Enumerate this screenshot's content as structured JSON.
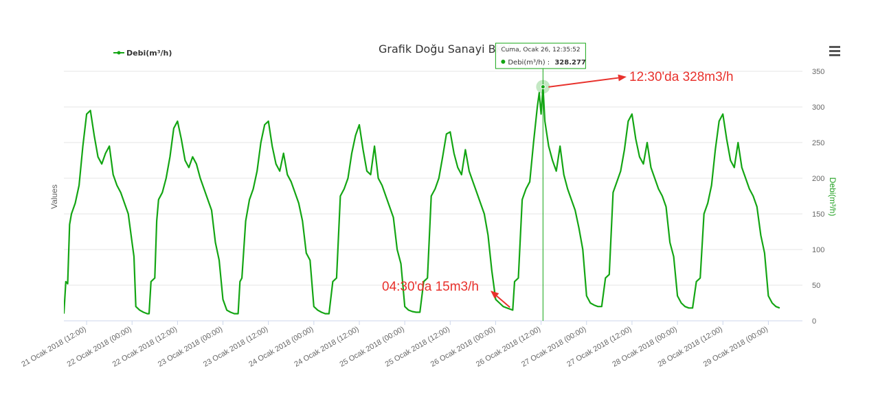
{
  "chart_data": {
    "type": "line",
    "title": "Grafik Doğu Sanayi BKV",
    "ylabel_left": "Values",
    "ylabel_right": "Debi(m³/h)",
    "ylim": [
      0,
      350
    ],
    "yticks": [
      0,
      50,
      100,
      150,
      200,
      250,
      300,
      350
    ],
    "grid": true,
    "legend_position": "top-left",
    "xrange": [
      "2018-01-21 06:00",
      "2018-01-29 09:00"
    ],
    "x_tick_labels": [
      "21 Ocak 2018 (12:00)",
      "22 Ocak 2018 (00:00)",
      "22 Ocak 2018 (12:00)",
      "23 Ocak 2018 (00:00)",
      "23 Ocak 2018 (12:00)",
      "24 Ocak 2018 (00:00)",
      "24 Ocak 2018 (12:00)",
      "25 Ocak 2018 (00:00)",
      "25 Ocak 2018 (12:00)",
      "26 Ocak 2018 (00:00)",
      "26 Ocak 2018 (12:00)",
      "27 Ocak 2018 (00:00)",
      "27 Ocak 2018 (12:00)",
      "28 Ocak 2018 (00:00)",
      "28 Ocak 2018 (12:00)",
      "29 Ocak 2018 (00:00)"
    ],
    "series": [
      {
        "name": "Debi(m³/h)",
        "color": "#13a513",
        "points": [
          [
            "2018-01-21 06:00",
            10
          ],
          [
            "2018-01-21 06:30",
            55
          ],
          [
            "2018-01-21 07:00",
            52
          ],
          [
            "2018-01-21 07:30",
            135
          ],
          [
            "2018-01-21 08:00",
            150
          ],
          [
            "2018-01-21 09:00",
            165
          ],
          [
            "2018-01-21 10:00",
            190
          ],
          [
            "2018-01-21 11:00",
            245
          ],
          [
            "2018-01-21 12:00",
            290
          ],
          [
            "2018-01-21 13:00",
            295
          ],
          [
            "2018-01-21 14:00",
            260
          ],
          [
            "2018-01-21 15:00",
            230
          ],
          [
            "2018-01-21 16:00",
            220
          ],
          [
            "2018-01-21 17:00",
            235
          ],
          [
            "2018-01-21 18:00",
            245
          ],
          [
            "2018-01-21 19:00",
            205
          ],
          [
            "2018-01-21 20:00",
            190
          ],
          [
            "2018-01-21 21:00",
            180
          ],
          [
            "2018-01-21 22:00",
            165
          ],
          [
            "2018-01-21 23:00",
            150
          ],
          [
            "2018-01-22 00:00",
            110
          ],
          [
            "2018-01-22 00:30",
            90
          ],
          [
            "2018-01-22 01:00",
            20
          ],
          [
            "2018-01-22 02:00",
            15
          ],
          [
            "2018-01-22 03:00",
            12
          ],
          [
            "2018-01-22 04:00",
            10
          ],
          [
            "2018-01-22 04:30",
            10
          ],
          [
            "2018-01-22 05:00",
            55
          ],
          [
            "2018-01-22 06:00",
            60
          ],
          [
            "2018-01-22 06:30",
            140
          ],
          [
            "2018-01-22 07:00",
            170
          ],
          [
            "2018-01-22 08:00",
            180
          ],
          [
            "2018-01-22 09:00",
            200
          ],
          [
            "2018-01-22 10:00",
            230
          ],
          [
            "2018-01-22 11:00",
            270
          ],
          [
            "2018-01-22 12:00",
            280
          ],
          [
            "2018-01-22 13:00",
            255
          ],
          [
            "2018-01-22 14:00",
            225
          ],
          [
            "2018-01-22 15:00",
            215
          ],
          [
            "2018-01-22 16:00",
            230
          ],
          [
            "2018-01-22 17:00",
            220
          ],
          [
            "2018-01-22 18:00",
            200
          ],
          [
            "2018-01-22 19:00",
            185
          ],
          [
            "2018-01-22 20:00",
            170
          ],
          [
            "2018-01-22 21:00",
            155
          ],
          [
            "2018-01-22 22:00",
            110
          ],
          [
            "2018-01-22 23:00",
            85
          ],
          [
            "2018-01-23 00:00",
            30
          ],
          [
            "2018-01-23 01:00",
            15
          ],
          [
            "2018-01-23 02:00",
            12
          ],
          [
            "2018-01-23 03:00",
            10
          ],
          [
            "2018-01-23 04:00",
            10
          ],
          [
            "2018-01-23 04:30",
            55
          ],
          [
            "2018-01-23 05:00",
            60
          ],
          [
            "2018-01-23 06:00",
            140
          ],
          [
            "2018-01-23 07:00",
            170
          ],
          [
            "2018-01-23 08:00",
            185
          ],
          [
            "2018-01-23 09:00",
            210
          ],
          [
            "2018-01-23 10:00",
            250
          ],
          [
            "2018-01-23 11:00",
            275
          ],
          [
            "2018-01-23 12:00",
            280
          ],
          [
            "2018-01-23 13:00",
            245
          ],
          [
            "2018-01-23 14:00",
            220
          ],
          [
            "2018-01-23 15:00",
            210
          ],
          [
            "2018-01-23 16:00",
            235
          ],
          [
            "2018-01-23 17:00",
            205
          ],
          [
            "2018-01-23 18:00",
            195
          ],
          [
            "2018-01-23 19:00",
            180
          ],
          [
            "2018-01-23 20:00",
            165
          ],
          [
            "2018-01-23 21:00",
            140
          ],
          [
            "2018-01-23 22:00",
            95
          ],
          [
            "2018-01-23 23:00",
            85
          ],
          [
            "2018-01-24 00:00",
            20
          ],
          [
            "2018-01-24 01:00",
            15
          ],
          [
            "2018-01-24 02:00",
            12
          ],
          [
            "2018-01-24 03:00",
            10
          ],
          [
            "2018-01-24 04:00",
            10
          ],
          [
            "2018-01-24 05:00",
            55
          ],
          [
            "2018-01-24 06:00",
            60
          ],
          [
            "2018-01-24 07:00",
            175
          ],
          [
            "2018-01-24 08:00",
            185
          ],
          [
            "2018-01-24 09:00",
            200
          ],
          [
            "2018-01-24 10:00",
            235
          ],
          [
            "2018-01-24 11:00",
            260
          ],
          [
            "2018-01-24 12:00",
            275
          ],
          [
            "2018-01-24 13:00",
            240
          ],
          [
            "2018-01-24 14:00",
            210
          ],
          [
            "2018-01-24 15:00",
            205
          ],
          [
            "2018-01-24 16:00",
            245
          ],
          [
            "2018-01-24 17:00",
            200
          ],
          [
            "2018-01-24 18:00",
            190
          ],
          [
            "2018-01-24 19:00",
            175
          ],
          [
            "2018-01-24 20:00",
            160
          ],
          [
            "2018-01-24 21:00",
            145
          ],
          [
            "2018-01-24 22:00",
            100
          ],
          [
            "2018-01-24 23:00",
            80
          ],
          [
            "2018-01-25 00:00",
            20
          ],
          [
            "2018-01-25 01:00",
            15
          ],
          [
            "2018-01-25 02:00",
            13
          ],
          [
            "2018-01-25 03:00",
            12
          ],
          [
            "2018-01-25 04:00",
            12
          ],
          [
            "2018-01-25 05:00",
            55
          ],
          [
            "2018-01-25 06:00",
            60
          ],
          [
            "2018-01-25 07:00",
            175
          ],
          [
            "2018-01-25 08:00",
            185
          ],
          [
            "2018-01-25 09:00",
            200
          ],
          [
            "2018-01-25 10:00",
            230
          ],
          [
            "2018-01-25 11:00",
            262
          ],
          [
            "2018-01-25 12:00",
            265
          ],
          [
            "2018-01-25 13:00",
            235
          ],
          [
            "2018-01-25 14:00",
            215
          ],
          [
            "2018-01-25 15:00",
            205
          ],
          [
            "2018-01-25 16:00",
            240
          ],
          [
            "2018-01-25 17:00",
            210
          ],
          [
            "2018-01-25 18:00",
            195
          ],
          [
            "2018-01-25 19:00",
            180
          ],
          [
            "2018-01-25 20:00",
            165
          ],
          [
            "2018-01-25 21:00",
            150
          ],
          [
            "2018-01-25 22:00",
            120
          ],
          [
            "2018-01-25 23:00",
            70
          ],
          [
            "2018-01-26 00:00",
            30
          ],
          [
            "2018-01-26 01:00",
            25
          ],
          [
            "2018-01-26 02:00",
            20
          ],
          [
            "2018-01-26 03:00",
            18
          ],
          [
            "2018-01-26 04:30",
            15
          ],
          [
            "2018-01-26 05:00",
            55
          ],
          [
            "2018-01-26 06:00",
            60
          ],
          [
            "2018-01-26 07:00",
            170
          ],
          [
            "2018-01-26 08:00",
            185
          ],
          [
            "2018-01-26 09:00",
            195
          ],
          [
            "2018-01-26 10:00",
            250
          ],
          [
            "2018-01-26 11:00",
            300
          ],
          [
            "2018-01-26 11:30",
            320
          ],
          [
            "2018-01-26 12:00",
            290
          ],
          [
            "2018-01-26 12:30",
            328
          ],
          [
            "2018-01-26 13:00",
            280
          ],
          [
            "2018-01-26 14:00",
            245
          ],
          [
            "2018-01-26 15:00",
            225
          ],
          [
            "2018-01-26 16:00",
            210
          ],
          [
            "2018-01-26 17:00",
            245
          ],
          [
            "2018-01-26 18:00",
            205
          ],
          [
            "2018-01-26 19:00",
            185
          ],
          [
            "2018-01-26 20:00",
            170
          ],
          [
            "2018-01-26 21:00",
            155
          ],
          [
            "2018-01-26 22:00",
            130
          ],
          [
            "2018-01-26 23:00",
            100
          ],
          [
            "2018-01-27 00:00",
            35
          ],
          [
            "2018-01-27 01:00",
            25
          ],
          [
            "2018-01-27 02:00",
            22
          ],
          [
            "2018-01-27 03:00",
            20
          ],
          [
            "2018-01-27 04:00",
            20
          ],
          [
            "2018-01-27 05:00",
            60
          ],
          [
            "2018-01-27 06:00",
            65
          ],
          [
            "2018-01-27 07:00",
            180
          ],
          [
            "2018-01-27 08:00",
            195
          ],
          [
            "2018-01-27 09:00",
            210
          ],
          [
            "2018-01-27 10:00",
            240
          ],
          [
            "2018-01-27 11:00",
            280
          ],
          [
            "2018-01-27 12:00",
            290
          ],
          [
            "2018-01-27 13:00",
            255
          ],
          [
            "2018-01-27 14:00",
            230
          ],
          [
            "2018-01-27 15:00",
            220
          ],
          [
            "2018-01-27 16:00",
            250
          ],
          [
            "2018-01-27 17:00",
            215
          ],
          [
            "2018-01-27 18:00",
            200
          ],
          [
            "2018-01-27 19:00",
            185
          ],
          [
            "2018-01-27 20:00",
            175
          ],
          [
            "2018-01-27 21:00",
            160
          ],
          [
            "2018-01-27 22:00",
            110
          ],
          [
            "2018-01-27 23:00",
            90
          ],
          [
            "2018-01-28 00:00",
            35
          ],
          [
            "2018-01-28 01:00",
            25
          ],
          [
            "2018-01-28 02:00",
            20
          ],
          [
            "2018-01-28 03:00",
            18
          ],
          [
            "2018-01-28 04:00",
            18
          ],
          [
            "2018-01-28 05:00",
            55
          ],
          [
            "2018-01-28 06:00",
            60
          ],
          [
            "2018-01-28 07:00",
            150
          ],
          [
            "2018-01-28 08:00",
            165
          ],
          [
            "2018-01-28 09:00",
            190
          ],
          [
            "2018-01-28 10:00",
            240
          ],
          [
            "2018-01-28 11:00",
            280
          ],
          [
            "2018-01-28 12:00",
            290
          ],
          [
            "2018-01-28 13:00",
            255
          ],
          [
            "2018-01-28 14:00",
            225
          ],
          [
            "2018-01-28 15:00",
            215
          ],
          [
            "2018-01-28 16:00",
            250
          ],
          [
            "2018-01-28 17:00",
            215
          ],
          [
            "2018-01-28 18:00",
            200
          ],
          [
            "2018-01-28 19:00",
            185
          ],
          [
            "2018-01-28 20:00",
            175
          ],
          [
            "2018-01-28 21:00",
            160
          ],
          [
            "2018-01-28 22:00",
            120
          ],
          [
            "2018-01-28 23:00",
            95
          ],
          [
            "2018-01-29 00:00",
            35
          ],
          [
            "2018-01-29 01:00",
            25
          ],
          [
            "2018-01-29 02:00",
            20
          ],
          [
            "2018-01-29 03:00",
            18
          ]
        ]
      }
    ],
    "tooltip": {
      "header": "Cuma, Ocak 26, 12:35:52",
      "series_label": "Debi(m³/h) :",
      "value": "328.277",
      "x": "2018-01-26 12:30",
      "y": 328.277
    },
    "annotations": [
      {
        "text": "12:30'da 328m3/h",
        "x": "2018-01-26 12:30",
        "y": 328
      },
      {
        "text": "04:30'da 15m3/h",
        "x": "2018-01-26 04:30",
        "y": 15
      }
    ]
  },
  "menu_icon": "hamburger-menu-icon"
}
